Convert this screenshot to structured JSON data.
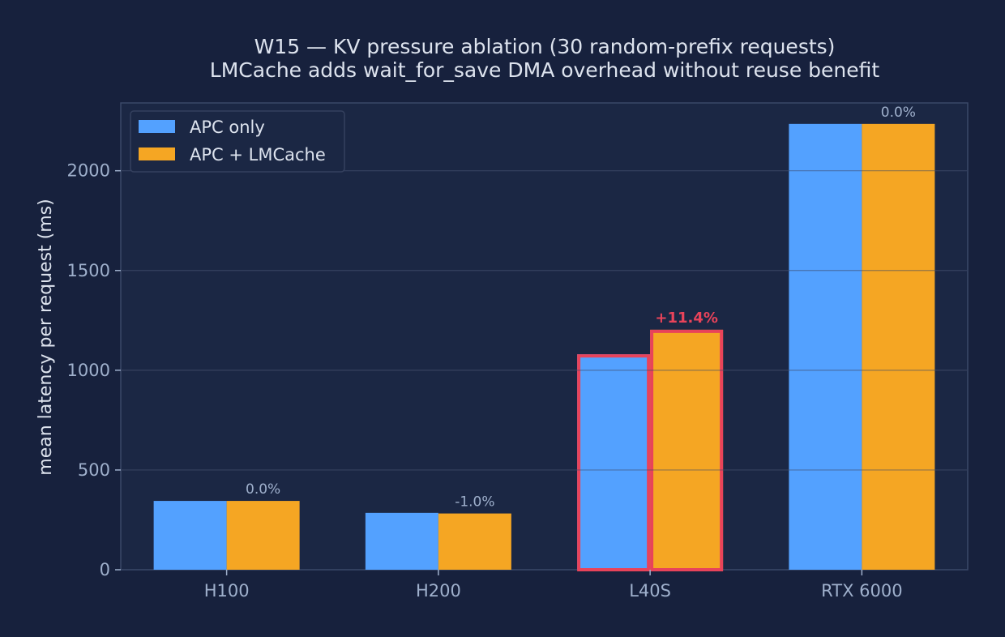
{
  "chart_data": {
    "type": "bar",
    "title": "W15 — KV pressure ablation (30 random-prefix requests)",
    "subtitle": "LMCache adds wait_for_save DMA overhead without reuse benefit",
    "xlabel": "",
    "ylabel": "mean latency per request (ms)",
    "categories": [
      "H100",
      "H200",
      "L40S",
      "RTX 6000"
    ],
    "series": [
      {
        "name": "APC only",
        "color": "#53a1ff",
        "values": [
          345,
          285,
          1080,
          2235
        ]
      },
      {
        "name": "APC + LMCache",
        "color": "#f5a623",
        "values": [
          345,
          282,
          1203,
          2235
        ]
      }
    ],
    "annotations": [
      "0.0%",
      "-1.0%",
      "+11.4%",
      "0.0%"
    ],
    "highlight": {
      "category": "L40S",
      "color": "#e8435a"
    },
    "ylim": [
      0,
      2340
    ],
    "yticks": [
      0,
      500,
      1000,
      1500,
      2000
    ],
    "grid": true,
    "legend_position": "top-left",
    "colors": {
      "background": "#17213d",
      "plot_background": "#1b2744",
      "text": "#dde3ee",
      "tick_text": "#9fb0cc",
      "annotation": "#9fb0cc",
      "highlight_annotation": "#e8435a",
      "grid": "#2a3656",
      "axis": "#3a4868"
    }
  }
}
